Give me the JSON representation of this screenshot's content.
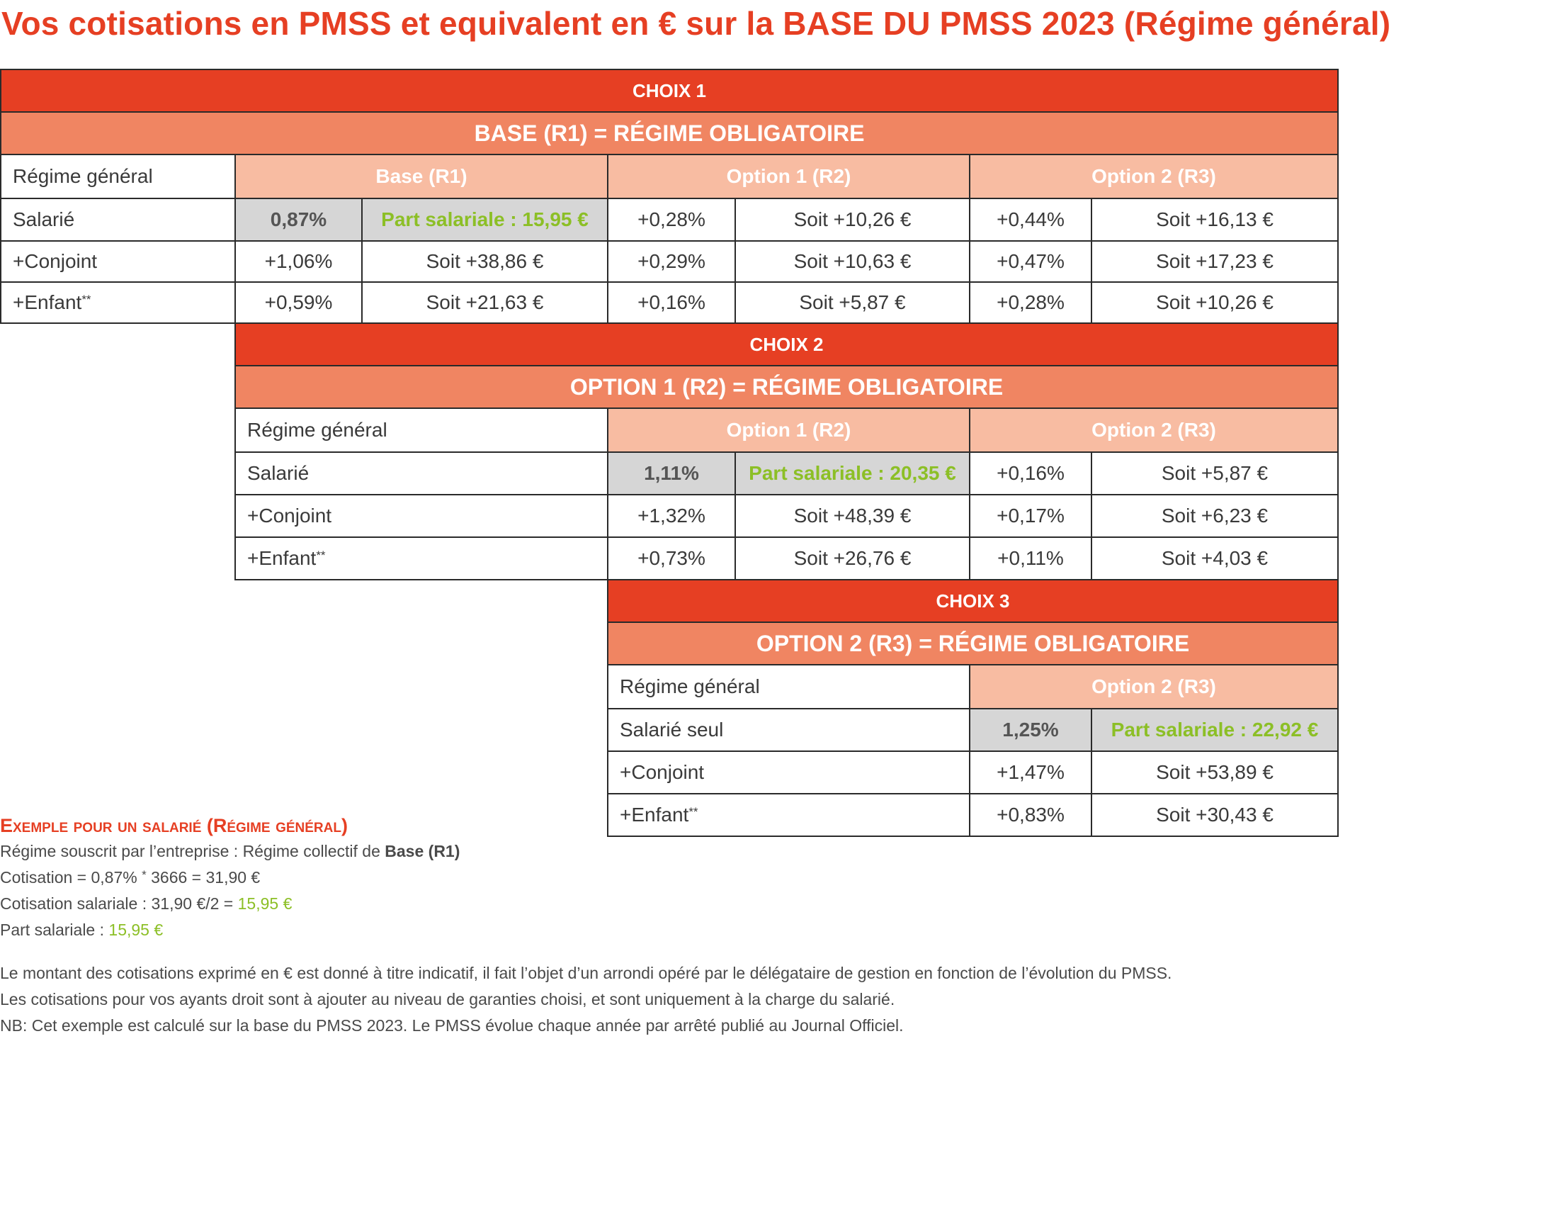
{
  "title": "Vos cotisations en PMSS et equivalent en € sur la BASE DU PMSS 2023 (Régime général)",
  "choix1": {
    "choix_label": "CHOIX 1",
    "regime_label": "BASE (R1) = RÉGIME OBLIGATOIRE",
    "row_header": "Régime général",
    "col_base": "Base (R1)",
    "col_opt1": "Option 1 (R2)",
    "col_opt2": "Option 2 (R3)",
    "rows": [
      {
        "label": "Salarié",
        "sup": "",
        "base_pct": "0,87%",
        "base_amt": "Part salariale : 15,95 €",
        "opt1_pct": "+0,28%",
        "opt1_amt": "Soit +10,26 €",
        "opt2_pct": "+0,44%",
        "opt2_amt": "Soit +16,13 €"
      },
      {
        "label": "+Conjoint",
        "sup": "",
        "base_pct": "+1,06%",
        "base_amt": "Soit +38,86 €",
        "opt1_pct": "+0,29%",
        "opt1_amt": "Soit +10,63 €",
        "opt2_pct": "+0,47%",
        "opt2_amt": "Soit +17,23 €"
      },
      {
        "label": "+Enfant",
        "sup": "**",
        "base_pct": "+0,59%",
        "base_amt": "Soit +21,63 €",
        "opt1_pct": "+0,16%",
        "opt1_amt": "Soit +5,87 €",
        "opt2_pct": "+0,28%",
        "opt2_amt": "Soit +10,26 €"
      }
    ]
  },
  "choix2": {
    "choix_label": "CHOIX 2",
    "regime_label": "OPTION 1 (R2) = RÉGIME OBLIGATOIRE",
    "row_header": "Régime général",
    "col_opt1": "Option 1 (R2)",
    "col_opt2": "Option 2 (R3)",
    "rows": [
      {
        "label": "Salarié",
        "sup": "",
        "opt1_pct": "1,11%",
        "opt1_amt": "Part salariale : 20,35 €",
        "opt2_pct": "+0,16%",
        "opt2_amt": "Soit +5,87 €"
      },
      {
        "label": "+Conjoint",
        "sup": "",
        "opt1_pct": "+1,32%",
        "opt1_amt": "Soit +48,39 €",
        "opt2_pct": "+0,17%",
        "opt2_amt": "Soit +6,23 €"
      },
      {
        "label": "+Enfant",
        "sup": "**",
        "opt1_pct": "+0,73%",
        "opt1_amt": "Soit +26,76 €",
        "opt2_pct": "+0,11%",
        "opt2_amt": "Soit +4,03 €"
      }
    ]
  },
  "choix3": {
    "choix_label": "CHOIX 3",
    "regime_label": "OPTION 2 (R3) = RÉGIME OBLIGATOIRE",
    "row_header": "Régime général",
    "col_opt2": "Option 2 (R3)",
    "rows": [
      {
        "label": "Salarié seul",
        "sup": "",
        "opt2_pct": "1,25%",
        "opt2_amt": "Part salariale : 22,92 €"
      },
      {
        "label": "+Conjoint",
        "sup": "",
        "opt2_pct": "+1,47%",
        "opt2_amt": "Soit +53,89 €"
      },
      {
        "label": "+Enfant",
        "sup": "**",
        "opt2_pct": "+0,83%",
        "opt2_amt": "Soit +30,43 €"
      }
    ]
  },
  "example": {
    "title": "Exemple pour un salarié (Régime général)",
    "line1_prefix": "Régime souscrit par l’entreprise : Régime collectif de ",
    "line1_bold": "Base (R1)",
    "line2_a": "Cotisation = 0,87% ",
    "line2_sup": "*",
    "line2_b": " 3666 = 31,90 €",
    "line3_prefix": "Cotisation salariale : 31,90 €/2 = ",
    "line3_value": "15,95 €",
    "line4_prefix": "Part salariale : ",
    "line4_value": "15,95 €"
  },
  "notes": [
    "Le montant des cotisations exprimé en € est donné à titre indicatif, il fait l’objet d’un arrondi opéré par le délégataire de gestion en fonction de l’évolution du PMSS.",
    "Les cotisations pour vos ayants droit sont à ajouter au niveau de garanties choisi, et sont uniquement à la charge du salarié.",
    "NB: Cet exemple est calculé sur la base du PMSS 2023. Le PMSS évolue chaque année par arrêté publié au Journal Officiel."
  ],
  "colors": {
    "red": "#e63f23",
    "orange": "#f08562",
    "peach": "#f8bca2",
    "grey": "#d6d6d6",
    "green": "#8cbf26"
  }
}
